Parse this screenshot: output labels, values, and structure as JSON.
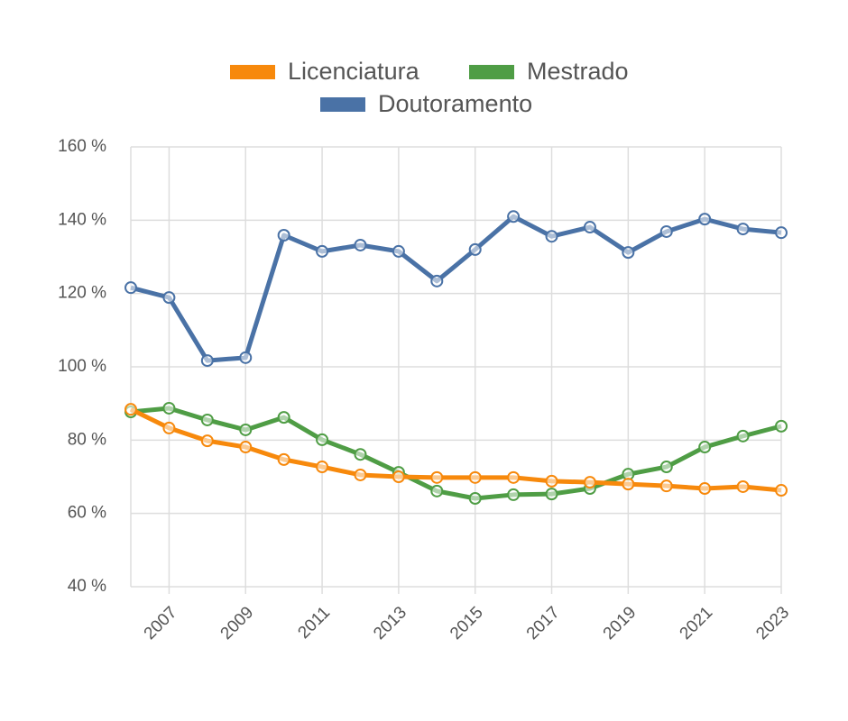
{
  "chart_data": {
    "type": "line",
    "x": [
      2006,
      2007,
      2008,
      2009,
      2010,
      2011,
      2012,
      2013,
      2014,
      2015,
      2016,
      2017,
      2018,
      2019,
      2020,
      2021,
      2022,
      2023
    ],
    "xlim": [
      2006,
      2023
    ],
    "xticks": [
      2007,
      2009,
      2011,
      2013,
      2015,
      2017,
      2019,
      2021,
      2023
    ],
    "ylim": [
      40,
      160
    ],
    "yticks": [
      {
        "value": 40,
        "label": "40 %"
      },
      {
        "value": 60,
        "label": "60 %"
      },
      {
        "value": 80,
        "label": "80 %"
      },
      {
        "value": 100,
        "label": "100 %"
      },
      {
        "value": 120,
        "label": "120 %"
      },
      {
        "value": 140,
        "label": "140 %"
      },
      {
        "value": 160,
        "label": "160 %"
      }
    ],
    "grid": true,
    "series": [
      {
        "name": "Licenciatura",
        "color": "#f7890c",
        "values": [
          88.4,
          83.3,
          79.8,
          78.1,
          74.7,
          72.7,
          70.5,
          70,
          69.8,
          69.8,
          69.8,
          68.8,
          68.5,
          68,
          67.5,
          66.8,
          67.3,
          66.3
        ]
      },
      {
        "name": "Mestrado",
        "color": "#4f9d45",
        "values": [
          87.7,
          88.7,
          85.5,
          82.8,
          86.2,
          80.1,
          76.1,
          71.2,
          66.1,
          64.1,
          65.1,
          65.3,
          66.8,
          70.7,
          72.7,
          78.1,
          81.1,
          83.8
        ]
      },
      {
        "name": "Doutoramento",
        "color": "#4a72a6",
        "values": [
          121.6,
          118.9,
          101.7,
          102.5,
          135.9,
          131.5,
          133.2,
          131.5,
          123.4,
          132,
          141,
          135.6,
          138.1,
          131.2,
          136.9,
          140.3,
          137.6,
          136.6
        ]
      }
    ]
  }
}
